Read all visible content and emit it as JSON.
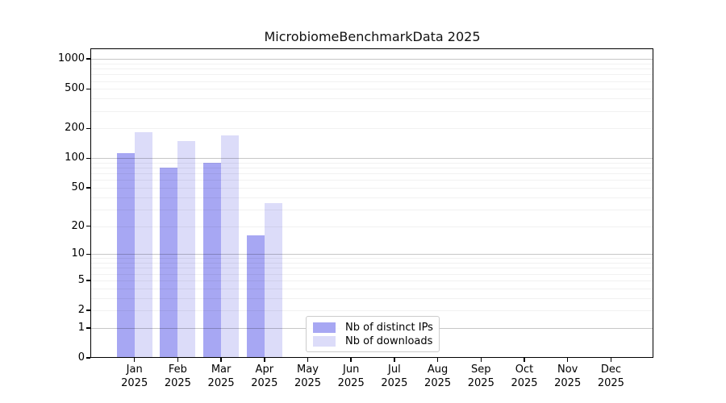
{
  "figure": {
    "background": "#ffffff"
  },
  "chart_data": {
    "type": "bar",
    "title": "MicrobiomeBenchmarkData 2025",
    "year": "2025",
    "categories": [
      "Jan",
      "Feb",
      "Mar",
      "Apr",
      "May",
      "Jun",
      "Jul",
      "Aug",
      "Sep",
      "Oct",
      "Nov",
      "Dec"
    ],
    "series": [
      {
        "name": "Nb of distinct IPs",
        "color": "#a7a7f3",
        "values": [
          113,
          80,
          90,
          16,
          0,
          0,
          0,
          0,
          0,
          0,
          0,
          0
        ]
      },
      {
        "name": "Nb of downloads",
        "color": "#dcdcf9",
        "values": [
          185,
          150,
          170,
          35,
          0,
          0,
          0,
          0,
          0,
          0,
          0,
          0
        ]
      }
    ],
    "yscale": "log1p",
    "yticks": [
      0,
      1,
      2,
      5,
      10,
      20,
      50,
      100,
      200,
      500,
      1000
    ],
    "ylim": [
      0,
      1260
    ],
    "xlabel": "",
    "ylabel": "",
    "grid": "horizontal",
    "legend_position": "bottom-center-inside"
  }
}
